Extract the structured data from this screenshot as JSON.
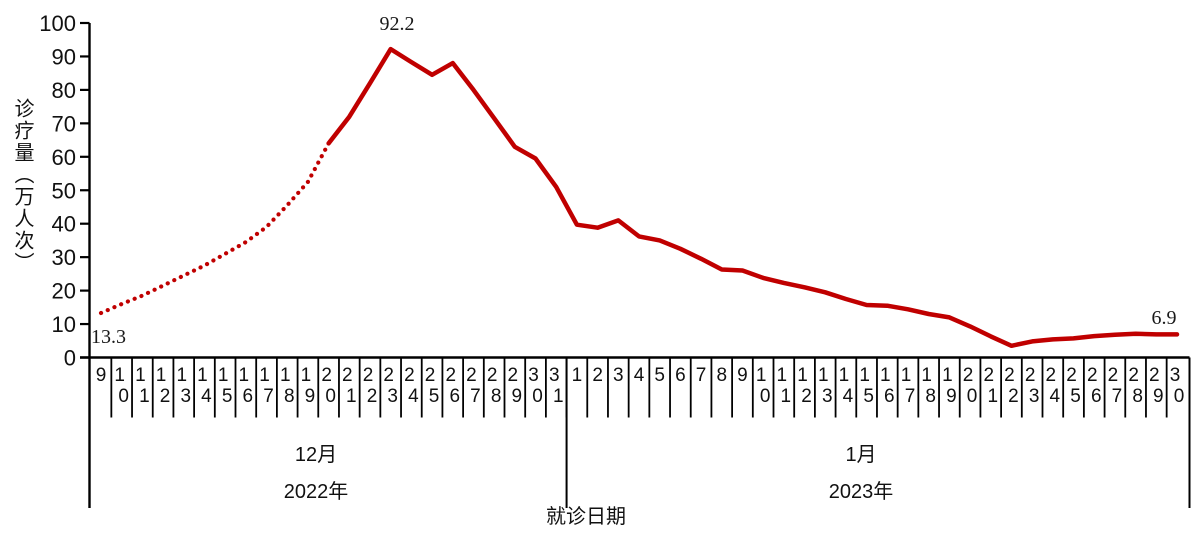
{
  "chart_data": {
    "type": "line",
    "title": "",
    "xlabel": "就诊日期",
    "ylabel": "诊疗量（万人次）",
    "ylim": [
      0,
      100
    ],
    "y_ticks": [
      100,
      90,
      80,
      70,
      60,
      50,
      40,
      30,
      20,
      10,
      0
    ],
    "grid": "off",
    "legend": "none",
    "x_groups": [
      {
        "month_label": "12月",
        "year_label": "2022年",
        "days": [
          "9",
          "10",
          "11",
          "12",
          "13",
          "14",
          "15",
          "16",
          "17",
          "18",
          "19",
          "20",
          "21",
          "22",
          "23",
          "24",
          "25",
          "26",
          "27",
          "28",
          "29",
          "30",
          "31"
        ]
      },
      {
        "month_label": "1月",
        "year_label": "2023年",
        "days": [
          "1",
          "2",
          "3",
          "4",
          "5",
          "6",
          "7",
          "8",
          "9",
          "10",
          "11",
          "12",
          "13",
          "14",
          "15",
          "16",
          "17",
          "18",
          "19",
          "20",
          "21",
          "22",
          "23",
          "24",
          "25",
          "26",
          "27",
          "28",
          "29",
          "30"
        ]
      }
    ],
    "series": [
      {
        "name": "诊疗量",
        "color": "#C00000",
        "line_style": "dotted from 12-09 to 12-20, solid from 12-20 to 01-30",
        "dotted_until_index": 11,
        "values": [
          13.3,
          16,
          18.5,
          21.5,
          24.5,
          27.5,
          31,
          34.5,
          39,
          45.5,
          52.5,
          64,
          72,
          82,
          92.2,
          88.3,
          84.5,
          88,
          80,
          71.5,
          63,
          59.5,
          51,
          39.7,
          38.8,
          41,
          36.2,
          35,
          32.5,
          29.5,
          26.3,
          26,
          23.8,
          22.3,
          21,
          19.5,
          17.5,
          15.7,
          15.5,
          14.4,
          13,
          12,
          9.3,
          6.3,
          3.5,
          4.8,
          5.4,
          5.7,
          6.4,
          6.8,
          7.1,
          6.9,
          6.9
        ]
      }
    ],
    "annotations": [
      {
        "text": "13.3",
        "date": "12-09",
        "position": "start-of-line"
      },
      {
        "text": "92.2",
        "date": "12-23",
        "position": "peak"
      },
      {
        "text": "6.9",
        "date": "01-30",
        "position": "end-of-line"
      }
    ]
  }
}
